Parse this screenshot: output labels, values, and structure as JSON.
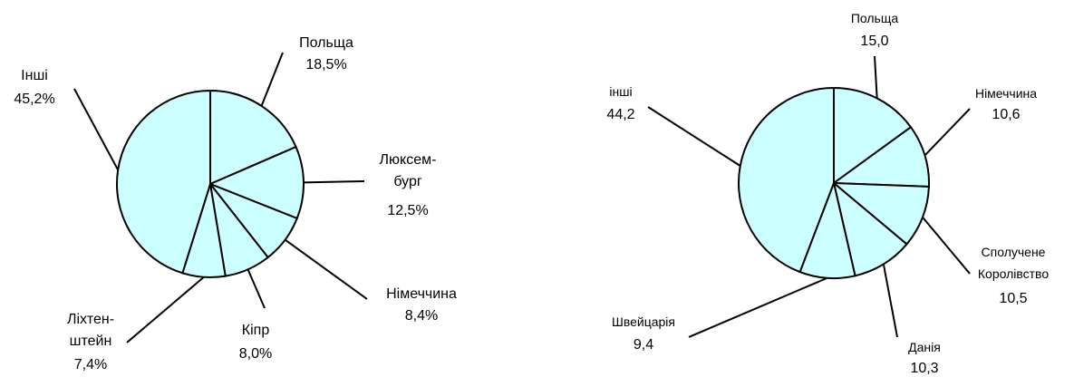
{
  "chart_data": [
    {
      "type": "pie",
      "categories": [
        "Польща",
        "Люксем-\nбург",
        "Німеччина",
        "Кіпр",
        "Ліхтен-\nштейн",
        "Інші"
      ],
      "values": [
        18.5,
        12.5,
        8.4,
        8.0,
        7.4,
        45.2
      ],
      "value_labels": [
        "18,5%",
        "12,5%",
        "8,4%",
        "8,0%",
        "7,4%",
        "45,2%"
      ],
      "color": "#ccffff"
    },
    {
      "type": "pie",
      "categories": [
        "Польща",
        "Німеччина",
        "Сполучене\nКоролівство",
        "Данія",
        "Швейцарія",
        "інші"
      ],
      "values": [
        15.0,
        10.6,
        10.5,
        10.3,
        9.4,
        44.2
      ],
      "value_labels": [
        "15,0",
        "10,6",
        "10,5",
        "10,3",
        "9,4",
        "44,2"
      ],
      "color": "#ccffff"
    }
  ]
}
